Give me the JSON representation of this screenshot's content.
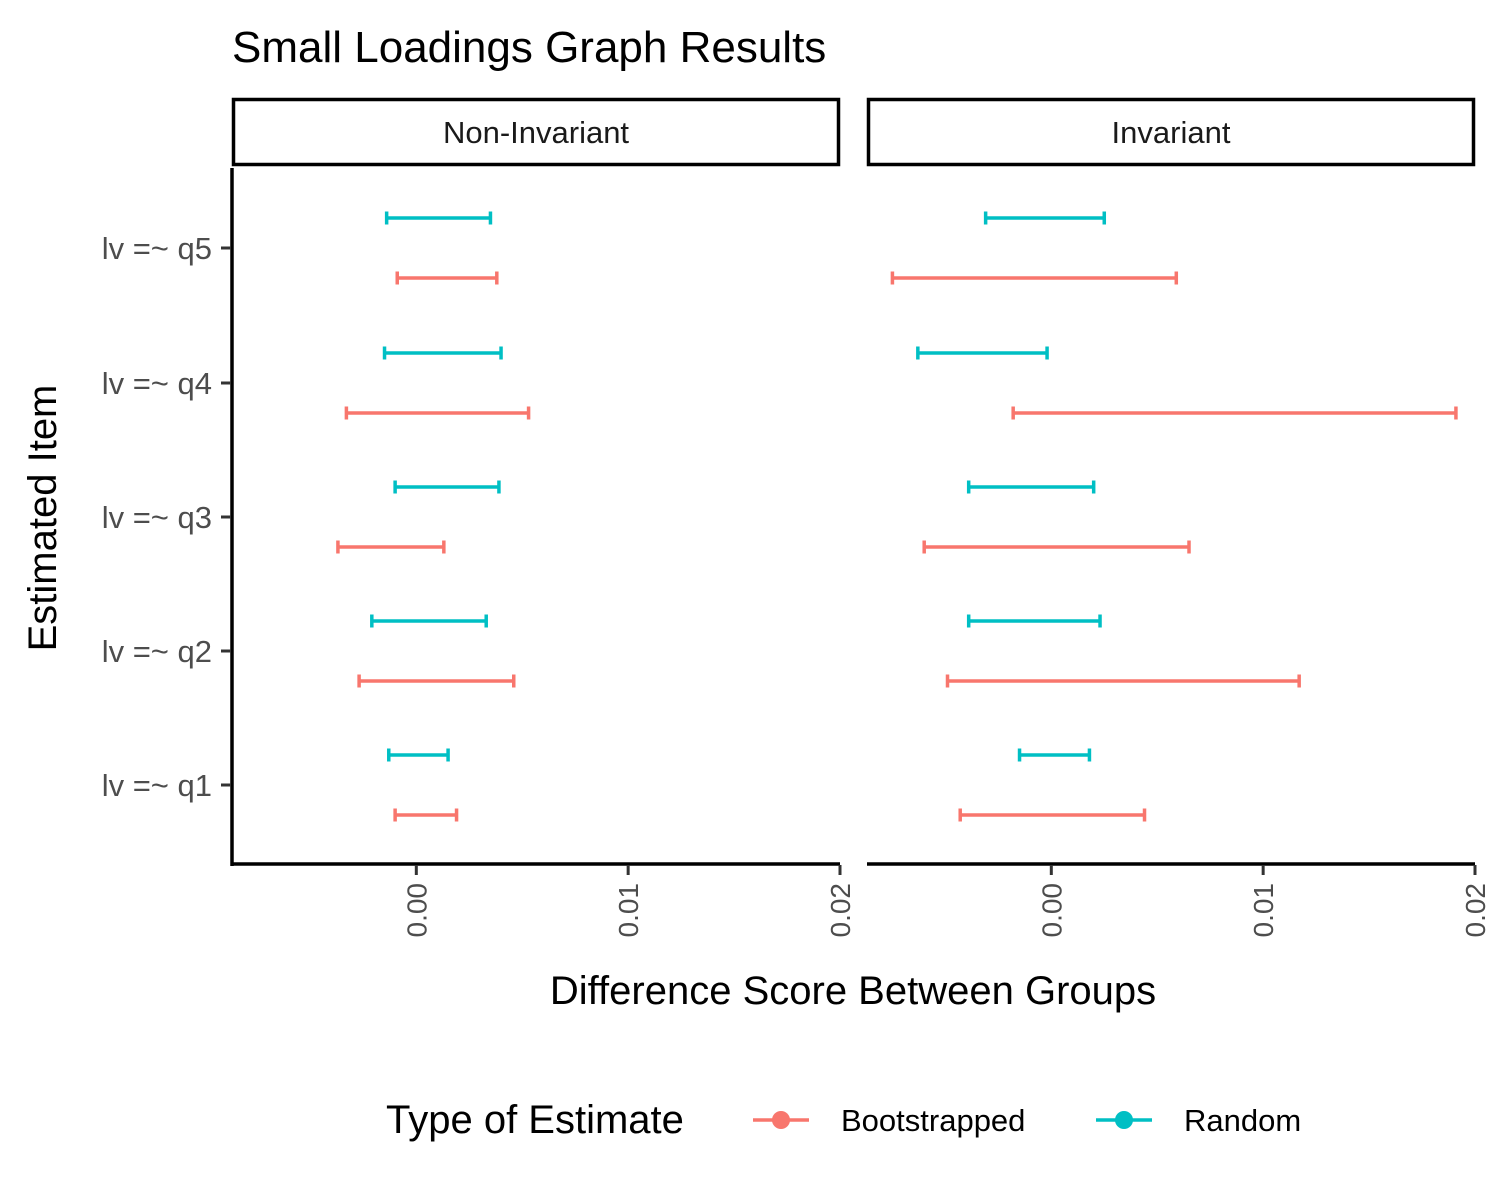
{
  "chart_data": {
    "type": "errorbar",
    "title": "Small Loadings Graph Results",
    "xlabel": "Difference Score Between Groups",
    "ylabel": "Estimated Item",
    "xlim": [
      -0.0087,
      0.02
    ],
    "x_ticks": [
      "0.00",
      "0.01",
      "0.02"
    ],
    "x_tick_values": [
      0,
      0.01,
      0.02
    ],
    "categories": [
      "lv =~ q1",
      "lv =~ q2",
      "lv =~ q3",
      "lv =~ q4",
      "lv =~ q5"
    ],
    "panels": [
      "Non-Invariant",
      "Invariant"
    ],
    "legend": {
      "title": "Type of Estimate",
      "position": "bottom",
      "entries": [
        {
          "name": "Bootstrapped",
          "color": "#F8766D"
        },
        {
          "name": "Random",
          "color": "#00BFC4"
        }
      ]
    },
    "series": [
      {
        "name": "Bootstrapped",
        "color": "#F8766D",
        "intervals": {
          "Non-Invariant": [
            [
              -0.001,
              0.0019
            ],
            [
              -0.0027,
              0.0046
            ],
            [
              -0.0037,
              0.0013
            ],
            [
              -0.0033,
              0.0053
            ],
            [
              -0.0009,
              0.0038
            ]
          ],
          "Invariant": [
            [
              -0.0043,
              0.0044
            ],
            [
              -0.0049,
              0.0117
            ],
            [
              -0.006,
              0.0065
            ],
            [
              -0.0018,
              0.0191
            ],
            [
              -0.0075,
              0.0059
            ]
          ]
        }
      },
      {
        "name": "Random",
        "color": "#00BFC4",
        "intervals": {
          "Non-Invariant": [
            [
              -0.0013,
              0.0015
            ],
            [
              -0.0021,
              0.0033
            ],
            [
              -0.001,
              0.0039
            ],
            [
              -0.0015,
              0.004
            ],
            [
              -0.0014,
              0.0035
            ]
          ],
          "Invariant": [
            [
              -0.0015,
              0.0018
            ],
            [
              -0.0039,
              0.0023
            ],
            [
              -0.0039,
              0.002
            ],
            [
              -0.0063,
              -0.0002
            ],
            [
              -0.0031,
              0.0025
            ]
          ]
        }
      }
    ]
  }
}
